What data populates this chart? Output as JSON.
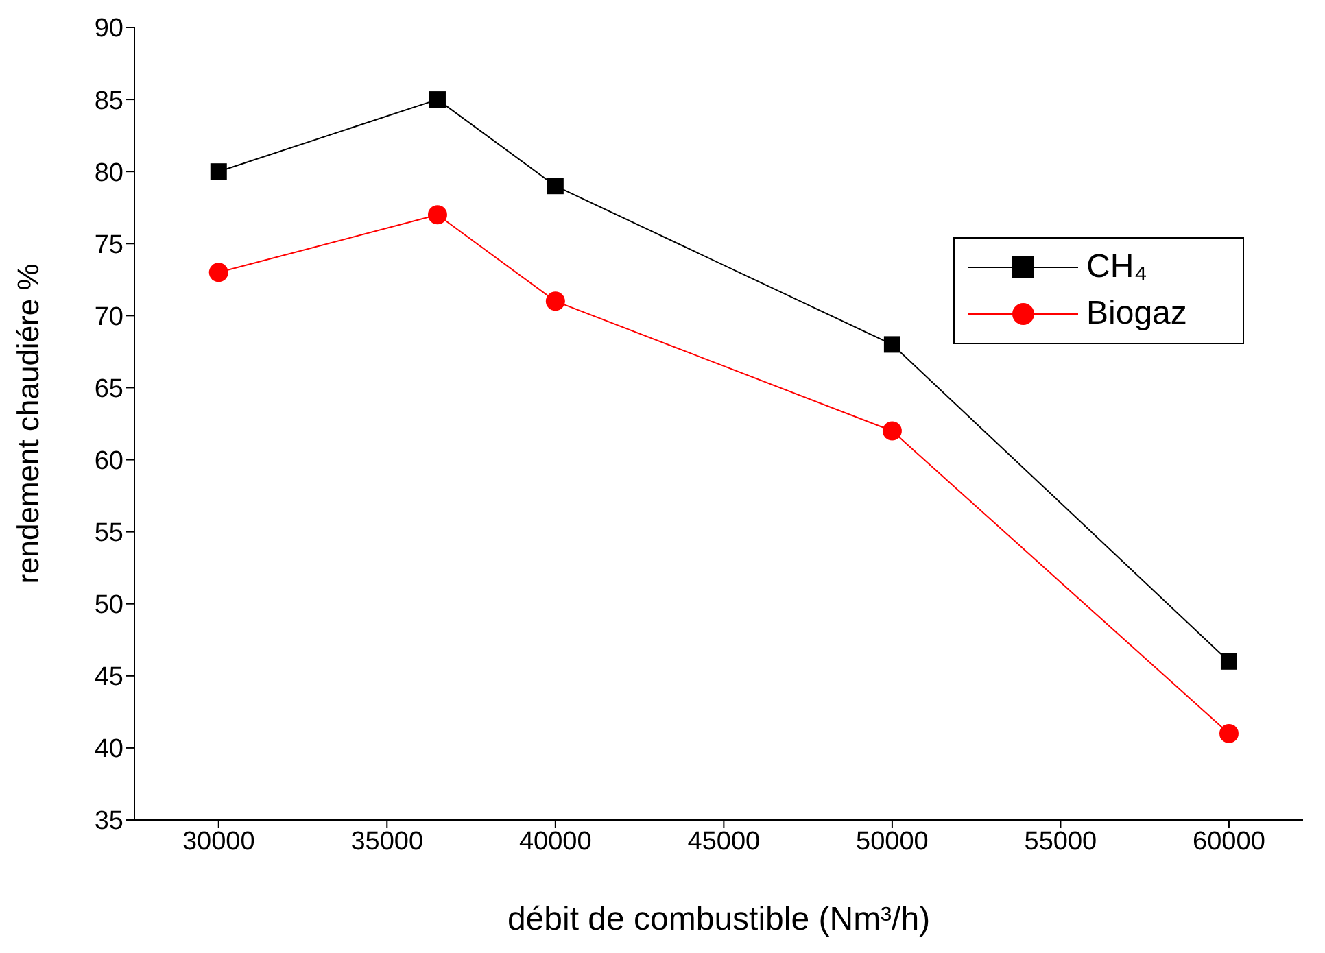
{
  "chart_data": {
    "type": "line",
    "xlabel": "débit de combustible (Nm³/h)",
    "ylabel": "rendement chaudiére %",
    "x": [
      30000,
      36500,
      40000,
      50000,
      60000
    ],
    "series": [
      {
        "name": "CH₄",
        "color": "#000000",
        "marker": "square",
        "values": [
          80,
          85,
          79,
          68,
          46
        ]
      },
      {
        "name": "Biogaz",
        "color": "#ff0000",
        "marker": "circle",
        "values": [
          73,
          77,
          71,
          62,
          41
        ]
      }
    ],
    "xlim": [
      27500,
      62200
    ],
    "xticks": [
      30000,
      35000,
      40000,
      45000,
      50000,
      55000,
      60000
    ],
    "ylim": [
      35,
      90
    ],
    "yticks": [
      35,
      40,
      45,
      50,
      55,
      60,
      65,
      70,
      75,
      80,
      85,
      90
    ],
    "grid": false,
    "legend": "right",
    "line_style": "solid"
  }
}
